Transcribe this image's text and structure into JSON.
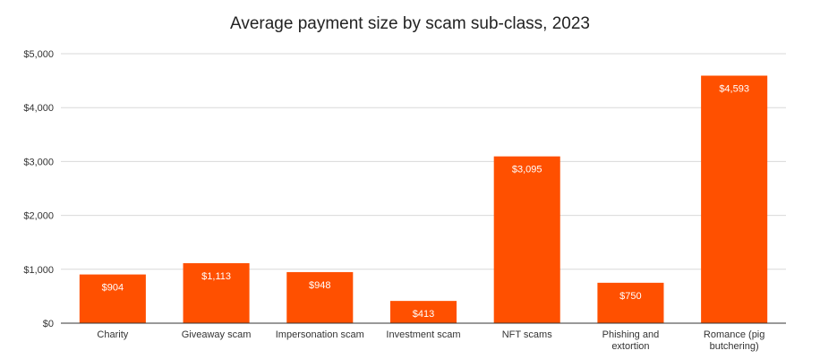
{
  "chart_data": {
    "type": "bar",
    "title": "Average payment size by scam sub-class, 2023",
    "xlabel": "",
    "ylabel": "",
    "categories": [
      [
        "Charity"
      ],
      [
        "Giveaway scam"
      ],
      [
        "Impersonation scam"
      ],
      [
        "Investment scam"
      ],
      [
        "NFT scams"
      ],
      [
        "Phishing and",
        "extortion"
      ],
      [
        "Romance (pig",
        "butchering)"
      ]
    ],
    "values": [
      904,
      1113,
      948,
      413,
      3095,
      750,
      4593
    ],
    "data_labels": [
      "$904",
      "$1,113",
      "$948",
      "$413",
      "$3,095",
      "$750",
      "$4,593"
    ],
    "ylim": [
      0,
      5000
    ],
    "yticks": [
      0,
      1000,
      2000,
      3000,
      4000,
      5000
    ],
    "ytick_labels": [
      "$0",
      "$1,000",
      "$2,000",
      "$3,000",
      "$4,000",
      "$5,000"
    ],
    "grid": true,
    "legend": "none",
    "colors": {
      "bar": "#ff5000",
      "grid": "#d9d9d9",
      "axis": "#333333"
    }
  }
}
